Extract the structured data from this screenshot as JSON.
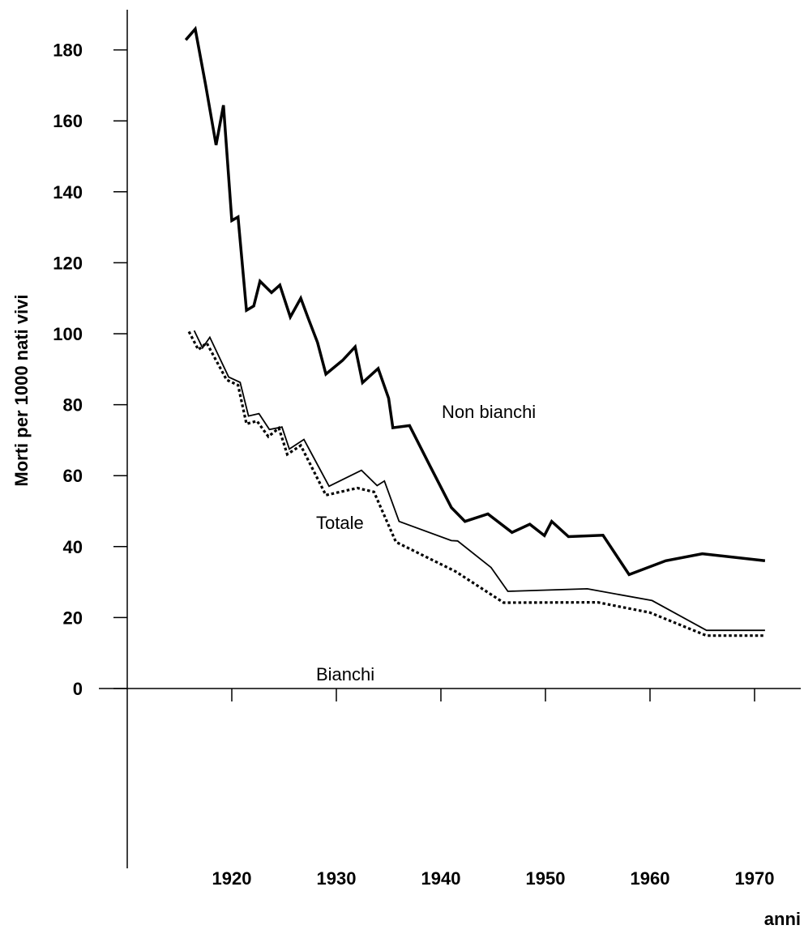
{
  "chart_data": {
    "type": "line",
    "title": "",
    "xlabel": "anni",
    "ylabel": "Morti per 1000 nati vivi",
    "xlim": [
      1910,
      1975
    ],
    "ylim": [
      0,
      190
    ],
    "x_ticks": [
      1920,
      1930,
      1940,
      1950,
      1960,
      1970
    ],
    "y_ticks": [
      0,
      20,
      40,
      60,
      80,
      100,
      120,
      140,
      160,
      180
    ],
    "grid": false,
    "legend": "none",
    "series": [
      {
        "name": "Non bianchi",
        "style": "thick-solid",
        "color": "#000000",
        "x": [
          1915.6,
          1916.5,
          1917.5,
          1918.5,
          1919.2,
          1920.0,
          1920.6,
          1921.4,
          1922.1,
          1922.7,
          1923.8,
          1924.6,
          1925.6,
          1926.6,
          1927.3,
          1928.2,
          1929.0,
          1930.6,
          1931.8,
          1932.5,
          1934.0,
          1935.0,
          1935.4,
          1937.0,
          1939.0,
          1941.0,
          1942.3,
          1944.5,
          1946.8,
          1948.5,
          1949.9,
          1950.6,
          1952.2,
          1955.5,
          1958.0,
          1961.5,
          1965.0,
          1971.0
        ],
        "y": [
          182.8,
          185.9,
          170.0,
          153.2,
          164.4,
          131.9,
          132.9,
          106.6,
          107.8,
          114.8,
          111.6,
          113.7,
          104.7,
          110.0,
          104.4,
          97.5,
          88.6,
          92.5,
          96.3,
          86.2,
          90.2,
          81.8,
          73.5,
          74.1,
          62.5,
          51.0,
          47.1,
          49.2,
          44.0,
          46.3,
          43.1,
          47.1,
          42.8,
          43.2,
          32.1,
          36.0,
          38.0,
          36.0
        ],
        "label_text": "Non bianchi"
      },
      {
        "name": "Totale",
        "style": "thin-solid",
        "color": "#000000",
        "x": [
          1916.4,
          1917.2,
          1917.9,
          1919.7,
          1920.8,
          1921.6,
          1922.6,
          1923.6,
          1924.8,
          1925.5,
          1926.9,
          1929.3,
          1932.4,
          1933.9,
          1934.6,
          1936.0,
          1941.0,
          1941.6,
          1944.8,
          1946.4,
          1954.0,
          1960.2,
          1965.4,
          1971.0
        ],
        "y": [
          100.9,
          96.0,
          99.0,
          87.8,
          86.3,
          76.8,
          77.5,
          73.0,
          73.7,
          67.5,
          70.2,
          57.0,
          61.5,
          57.2,
          58.5,
          47.1,
          41.7,
          41.6,
          34.1,
          27.4,
          28.1,
          24.8,
          16.4,
          16.4
        ],
        "label_text": "Totale"
      },
      {
        "name": "Bianchi",
        "style": "dotted",
        "color": "#000000",
        "x": [
          1915.9,
          1916.8,
          1917.6,
          1919.5,
          1920.6,
          1921.4,
          1922.4,
          1923.5,
          1924.5,
          1925.3,
          1926.6,
          1929.0,
          1932.0,
          1933.6,
          1935.7,
          1941.4,
          1946.0,
          1955.0,
          1960.0,
          1965.4,
          1971.0
        ],
        "y": [
          100.6,
          95.5,
          97.4,
          87.0,
          85.5,
          74.6,
          75.4,
          71.0,
          73.4,
          66.0,
          68.5,
          54.5,
          56.5,
          55.4,
          41.3,
          33.0,
          24.2,
          24.3,
          21.4,
          14.9,
          14.9
        ],
        "label_text": "Bianchi"
      }
    ]
  }
}
